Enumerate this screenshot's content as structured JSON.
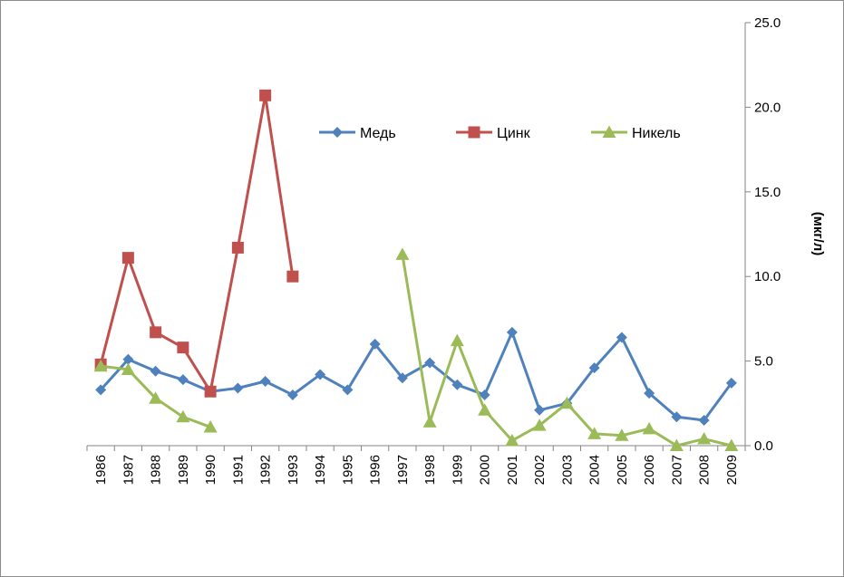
{
  "chart_data": {
    "type": "line",
    "title": "",
    "xlabel": "",
    "ylabel": "(мкг/л)",
    "y_axis_side": "right",
    "ylim": [
      0,
      25
    ],
    "y_ticks": [
      "0.0",
      "5.0",
      "10.0",
      "15.0",
      "20.0",
      "25.0"
    ],
    "grid": false,
    "legend_position": "top-center",
    "categories": [
      "1986",
      "1987",
      "1988",
      "1989",
      "1990",
      "1991",
      "1992",
      "1993",
      "1994",
      "1995",
      "1996",
      "1997",
      "1998",
      "1999",
      "2000",
      "2001",
      "2002",
      "2003",
      "2004",
      "2005",
      "2006",
      "2007",
      "2008",
      "2009"
    ],
    "series": [
      {
        "name": "Медь",
        "color": "#4f81bd",
        "marker": "diamond",
        "values": [
          3.3,
          5.1,
          4.4,
          3.9,
          3.2,
          3.4,
          3.8,
          3.0,
          4.2,
          3.3,
          6.0,
          4.0,
          4.9,
          3.6,
          3.0,
          6.7,
          2.1,
          2.5,
          4.6,
          6.4,
          3.1,
          1.7,
          1.5,
          3.7
        ]
      },
      {
        "name": "Цинк",
        "color": "#c0504d",
        "marker": "square",
        "values": [
          4.8,
          11.1,
          6.7,
          5.8,
          3.2,
          11.7,
          20.7,
          10.0,
          null,
          null,
          null,
          null,
          null,
          null,
          null,
          null,
          null,
          null,
          null,
          null,
          null,
          null,
          null,
          null
        ]
      },
      {
        "name": "Никель",
        "color": "#9bbb59",
        "marker": "triangle",
        "values": [
          4.7,
          4.5,
          2.8,
          1.7,
          1.1,
          null,
          null,
          null,
          null,
          null,
          null,
          11.3,
          1.4,
          6.2,
          2.1,
          0.3,
          1.2,
          2.5,
          0.7,
          0.6,
          1.0,
          0.0,
          0.4,
          0.0
        ]
      }
    ]
  }
}
